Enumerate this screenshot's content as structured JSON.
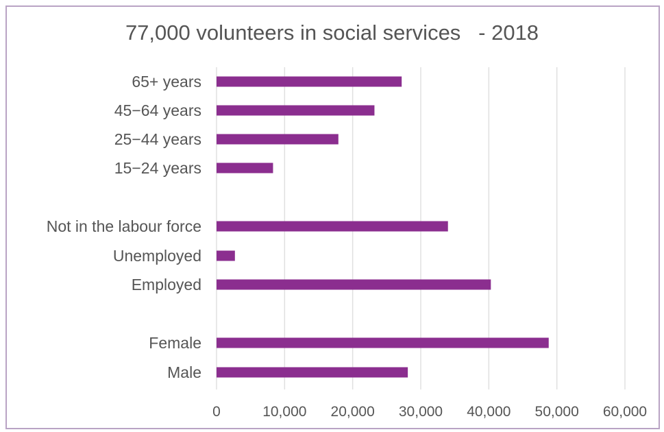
{
  "chart_data": {
    "type": "bar",
    "orientation": "horizontal",
    "title": "77,000 volunteers in social services   - 2018",
    "categories": [
      "65+ years",
      "45−64 years",
      "25−44 years",
      "15−24 years",
      "Not in the labour force",
      "Unemployed",
      "Employed",
      "Female",
      "Male"
    ],
    "values": [
      27200,
      23200,
      17900,
      8300,
      34000,
      2700,
      40300,
      48800,
      28100
    ],
    "xlim": [
      0,
      60000
    ],
    "xticks": [
      "0",
      "10,000",
      "20,000",
      "30,000",
      "40,000",
      "50,000",
      "60,000"
    ],
    "xlabel": "",
    "ylabel": "",
    "grid": "vertical",
    "bar_color": "#8b2e8f",
    "grid_color": "#e0e0e0",
    "border_color": "#b9a3c4"
  }
}
